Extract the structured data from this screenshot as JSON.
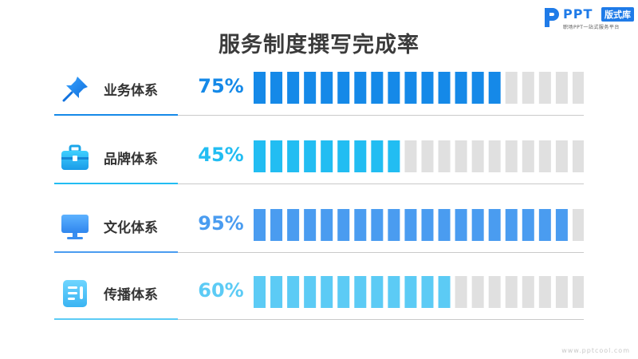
{
  "title": "服务制度撰写完成率",
  "logo": {
    "brand": "PPT",
    "badge": "版式库",
    "sub": "职场PPT一站式服务平台"
  },
  "watermark": "www.pptcool.com",
  "segments_total": 20,
  "colors": {
    "empty": "#e0e0e0",
    "divider": "#c9c9c9"
  },
  "chart_data": {
    "type": "bar",
    "title": "服务制度撰写完成率",
    "categories": [
      "业务体系",
      "品牌体系",
      "文化体系",
      "传播体系"
    ],
    "values": [
      75,
      45,
      95,
      60
    ],
    "ylim": [
      0,
      100
    ],
    "unit": "%",
    "labels": [
      "75%",
      "45%",
      "95%",
      "60%"
    ],
    "colors": [
      "#1589e8",
      "#22bdf2",
      "#4a9cf0",
      "#5ccbf5"
    ],
    "icons": [
      "pushpin-icon",
      "briefcase-icon",
      "monitor-icon",
      "document-icon"
    ]
  }
}
